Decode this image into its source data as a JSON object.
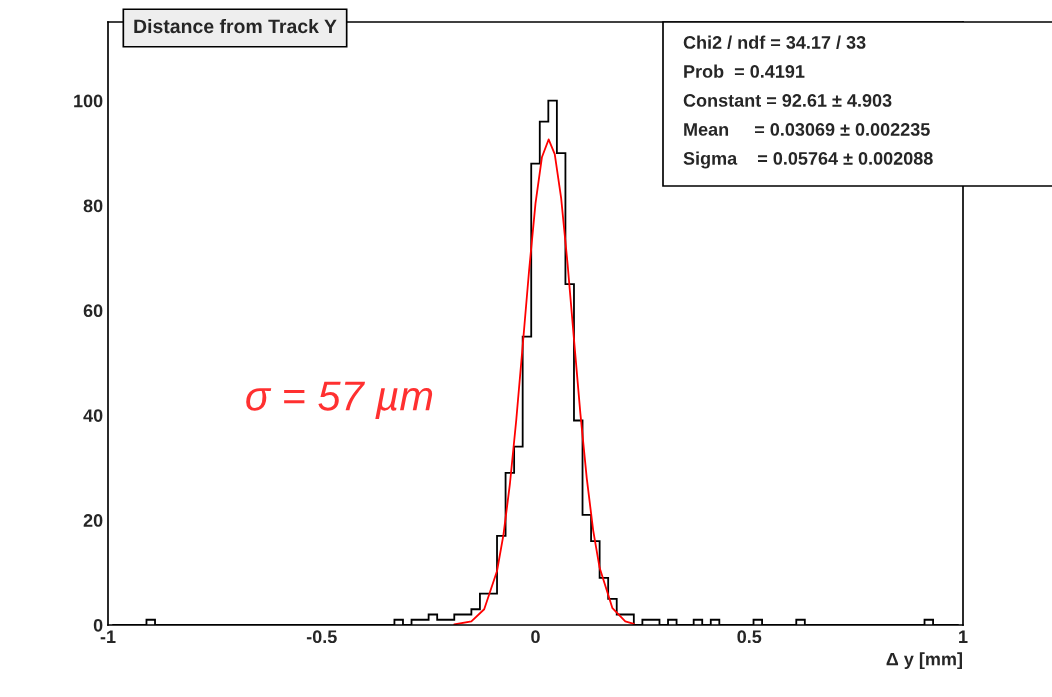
{
  "chart_data": {
    "type": "histogram",
    "title": "Distance from Track Y",
    "xlabel": "Δ y [mm]",
    "xlim": [
      -1,
      1
    ],
    "xticks": [
      -1,
      -0.5,
      0,
      0.5,
      1
    ],
    "ylim": [
      0,
      115
    ],
    "yticks": [
      0,
      20,
      40,
      60,
      80,
      100
    ],
    "grid": false,
    "legend": false,
    "series": [
      {
        "color": "#000000",
        "bins": [
          -0.99,
          -0.97,
          -0.95,
          -0.93,
          -0.91,
          -0.89,
          -0.87,
          -0.85,
          -0.83,
          -0.81,
          -0.79,
          -0.77,
          -0.75,
          -0.73,
          -0.71,
          -0.69,
          -0.67,
          -0.65,
          -0.63,
          -0.61,
          -0.59,
          -0.57,
          -0.55,
          -0.53,
          -0.51,
          -0.49,
          -0.47,
          -0.45,
          -0.43,
          -0.41,
          -0.39,
          -0.37,
          -0.35,
          -0.33,
          -0.31,
          -0.29,
          -0.27,
          -0.25,
          -0.23,
          -0.21,
          -0.19,
          -0.17,
          -0.15,
          -0.13,
          -0.11,
          -0.09,
          -0.07,
          -0.05,
          -0.03,
          -0.01,
          0.01,
          0.03,
          0.05,
          0.07,
          0.09,
          0.11,
          0.13,
          0.15,
          0.17,
          0.19,
          0.21,
          0.23,
          0.25,
          0.27,
          0.29,
          0.31,
          0.33,
          0.35,
          0.37,
          0.39,
          0.41,
          0.43,
          0.45,
          0.47,
          0.49,
          0.51,
          0.53,
          0.55,
          0.57,
          0.59,
          0.61,
          0.63,
          0.65,
          0.67,
          0.69,
          0.71,
          0.73,
          0.75,
          0.77,
          0.79,
          0.81,
          0.83,
          0.85,
          0.87,
          0.89,
          0.91,
          0.93,
          0.95,
          0.97,
          0.99
        ],
        "values": [
          0,
          0,
          0,
          0,
          1,
          0,
          0,
          0,
          0,
          0,
          0,
          0,
          0,
          0,
          0,
          0,
          0,
          0,
          0,
          0,
          0,
          0,
          0,
          0,
          0,
          0,
          0,
          0,
          0,
          0,
          0,
          0,
          0,
          1,
          0,
          1,
          1,
          2,
          1,
          1,
          2,
          2,
          3,
          6,
          6,
          17,
          29,
          34,
          55,
          88,
          96,
          100,
          90,
          65,
          39,
          21,
          16,
          9,
          5,
          2,
          2,
          0,
          1,
          1,
          0,
          1,
          0,
          0,
          1,
          0,
          1,
          0,
          0,
          0,
          0,
          1,
          0,
          0,
          0,
          0,
          1,
          0,
          0,
          0,
          0,
          0,
          0,
          0,
          0,
          0,
          0,
          0,
          0,
          0,
          0,
          1,
          0,
          0,
          0
        ]
      },
      {
        "type": "line",
        "color": "#ff0000",
        "x": [
          -0.19,
          -0.15,
          -0.12,
          -0.09,
          -0.075,
          -0.06,
          -0.045,
          -0.03,
          -0.015,
          0,
          0.015,
          0.0307,
          0.045,
          0.06,
          0.075,
          0.09,
          0.105,
          0.12,
          0.135,
          0.15,
          0.18,
          0.21,
          0.23
        ],
        "values": [
          0.1,
          0.7,
          3.0,
          10.3,
          17.2,
          26.8,
          39.1,
          53.2,
          67.6,
          80.4,
          89.2,
          92.6,
          89.8,
          81.4,
          68.9,
          54.5,
          40.3,
          27.9,
          18.0,
          10.9,
          3.2,
          0.7,
          0.2
        ]
      }
    ],
    "annotations": [
      "Chi2 / ndf = 34.17 / 33",
      "Prob  = 0.4191",
      "Constant = 92.61 ± 4.903",
      "Mean     = 0.03069 ± 0.002235",
      "Sigma    = 0.05764 ± 0.002088",
      "σ = 57 µm"
    ]
  }
}
